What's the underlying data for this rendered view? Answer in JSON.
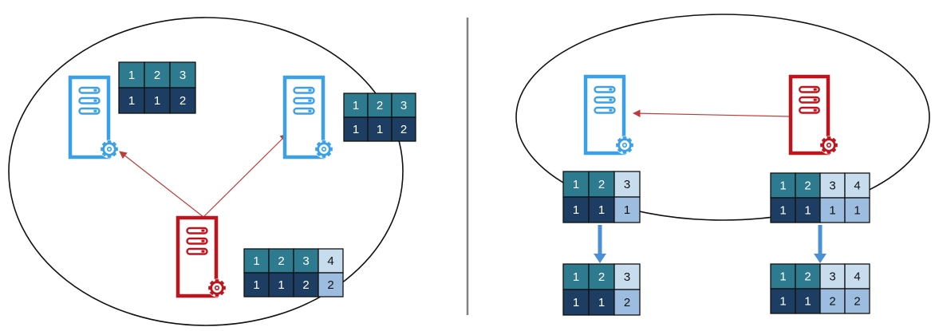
{
  "colors": {
    "server_blue": "#3aa0e8",
    "server_red": "#c0141c",
    "arrow_red": "#c03a3a",
    "arrow_blue": "#4a90d6",
    "cell_teal": "#2e7a8e",
    "cell_navy": "#1d3e62",
    "cell_pale": "#c7dcec",
    "cell_light": "#9dbde0",
    "outline": "#111111",
    "divider": "#808080"
  },
  "icons": {
    "server": "server-icon",
    "gear": "gear-icon"
  },
  "left_panel": {
    "table_left_server": {
      "rows": [
        [
          "1",
          "2",
          "3"
        ],
        [
          "1",
          "1",
          "2"
        ]
      ]
    },
    "table_right_server": {
      "rows": [
        [
          "1",
          "2",
          "3"
        ],
        [
          "1",
          "1",
          "2"
        ]
      ]
    },
    "table_red_server": {
      "rows": [
        [
          "1",
          "2",
          "3",
          "4"
        ],
        [
          "1",
          "1",
          "2",
          "2"
        ]
      ]
    }
  },
  "right_panel": {
    "table_blue_before": {
      "rows": [
        [
          "1",
          "2",
          "3"
        ],
        [
          "1",
          "1",
          "1"
        ]
      ]
    },
    "table_red_before": {
      "rows": [
        [
          "1",
          "2",
          "3",
          "4"
        ],
        [
          "1",
          "1",
          "1",
          "1"
        ]
      ]
    },
    "table_blue_after": {
      "rows": [
        [
          "1",
          "2",
          "3"
        ],
        [
          "1",
          "1",
          "2"
        ]
      ]
    },
    "table_red_after": {
      "rows": [
        [
          "1",
          "2",
          "3",
          "4"
        ],
        [
          "1",
          "1",
          "2",
          "2"
        ]
      ]
    }
  }
}
